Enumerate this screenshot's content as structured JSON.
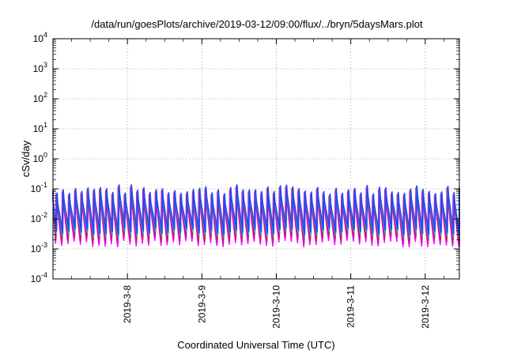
{
  "chart_data": {
    "type": "line",
    "title": "/data/run/goesPlots/archive/2019-03-12/09:00/flux/../bryn/5daysMars.plot",
    "xlabel": "Coordinated Universal Time (UTC)",
    "ylabel": "cSv/day",
    "y_scale": "log",
    "ylim_exponents": [
      -4,
      4
    ],
    "y_tick_exponents": [
      4,
      3,
      2,
      1,
      0,
      -1,
      -2,
      -3,
      -4
    ],
    "y_tick_base": "10",
    "x_ticks": [
      "2019-3-8",
      "2019-3-9",
      "2019-3-10",
      "2019-3-11",
      "2019-3-12"
    ],
    "xlim": [
      "2019-03-07T00:00",
      "2019-03-12T11:00"
    ],
    "grid": true,
    "pulse_period_hours": 2,
    "series_colors": [
      "#ff00ff",
      "#cc00cc",
      "#dd2222",
      "#00bbbb",
      "#2244ff"
    ],
    "envelope": {
      "peak_log10_range": [
        -1.35,
        -0.85
      ],
      "trough_log10_range": [
        -3.05,
        -2.3
      ]
    }
  }
}
